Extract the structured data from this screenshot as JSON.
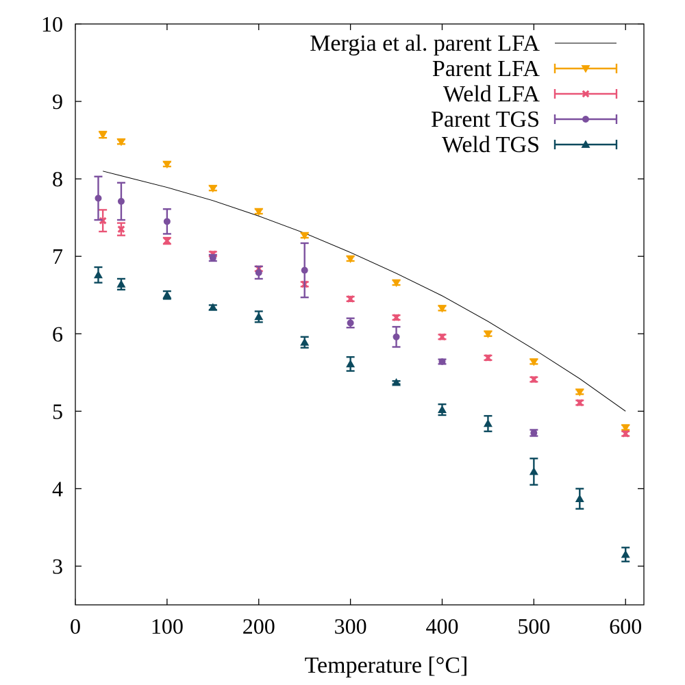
{
  "chart_data": {
    "type": "scatter",
    "title": "",
    "xlabel": "Temperature [°C]",
    "ylabel": "",
    "xlim": [
      0,
      620
    ],
    "ylim": [
      2.5,
      10
    ],
    "x_ticks": [
      0,
      100,
      200,
      300,
      400,
      500,
      600
    ],
    "y_ticks": [
      3,
      4,
      5,
      6,
      7,
      8,
      9,
      10
    ],
    "grid": false,
    "legend_position": "top-right",
    "series": [
      {
        "name": "Mergia et al. parent LFA",
        "kind": "line",
        "color": "#000000",
        "x": [
          30,
          50,
          100,
          150,
          200,
          250,
          300,
          350,
          400,
          450,
          500,
          550,
          600
        ],
        "y": [
          8.1,
          8.04,
          7.89,
          7.72,
          7.52,
          7.3,
          7.05,
          6.78,
          6.49,
          6.16,
          5.8,
          5.42,
          5.0
        ]
      },
      {
        "name": "Parent LFA",
        "kind": "points",
        "marker": "triangle-down",
        "color": "#f5a300",
        "x": [
          30,
          50,
          100,
          150,
          200,
          250,
          300,
          350,
          400,
          450,
          500,
          550,
          600
        ],
        "y": [
          8.57,
          8.48,
          8.19,
          7.88,
          7.58,
          7.27,
          6.97,
          6.66,
          6.33,
          6.0,
          5.64,
          5.25,
          4.79
        ],
        "err": [
          0.04,
          0.03,
          0.03,
          0.03,
          0.03,
          0.03,
          0.03,
          0.03,
          0.03,
          0.03,
          0.03,
          0.03,
          0.03
        ]
      },
      {
        "name": "Weld LFA",
        "kind": "points",
        "marker": "x",
        "color": "#e95476",
        "x": [
          30,
          50,
          100,
          150,
          200,
          250,
          300,
          350,
          400,
          450,
          500,
          550,
          600
        ],
        "y": [
          7.46,
          7.35,
          7.2,
          7.03,
          6.84,
          6.64,
          6.45,
          6.21,
          5.96,
          5.69,
          5.41,
          5.11,
          4.71
        ],
        "err": [
          0.14,
          0.08,
          0.04,
          0.03,
          0.03,
          0.03,
          0.03,
          0.03,
          0.03,
          0.03,
          0.03,
          0.03,
          0.03
        ]
      },
      {
        "name": "Parent TGS",
        "kind": "points",
        "marker": "circle",
        "color": "#7b4f9e",
        "x": [
          25,
          50,
          100,
          150,
          200,
          250,
          300,
          350,
          400,
          500
        ],
        "y": [
          7.75,
          7.71,
          7.45,
          6.98,
          6.79,
          6.82,
          6.14,
          5.96,
          5.64,
          4.72
        ],
        "err": [
          0.28,
          0.24,
          0.16,
          0.04,
          0.08,
          0.35,
          0.06,
          0.13,
          0.03,
          0.04
        ]
      },
      {
        "name": "Weld TGS",
        "kind": "points",
        "marker": "triangle-up",
        "color": "#0c4a5e",
        "x": [
          25,
          50,
          100,
          150,
          200,
          250,
          300,
          350,
          400,
          450,
          500,
          550,
          600
        ],
        "y": [
          6.76,
          6.64,
          6.5,
          6.34,
          6.22,
          5.89,
          5.61,
          5.37,
          5.02,
          4.84,
          4.22,
          3.87,
          3.15
        ],
        "err": [
          0.1,
          0.07,
          0.05,
          0.03,
          0.07,
          0.07,
          0.09,
          0.02,
          0.07,
          0.1,
          0.17,
          0.13,
          0.09
        ]
      }
    ]
  }
}
